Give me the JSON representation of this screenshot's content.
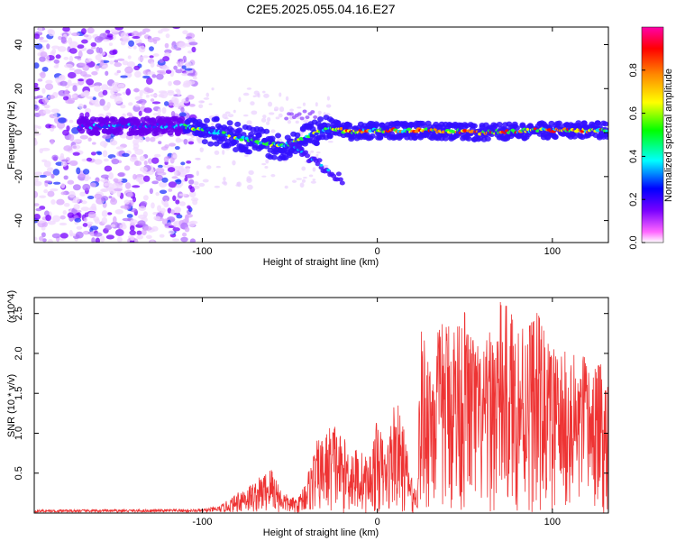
{
  "chart_data": [
    {
      "type": "heatmap",
      "title": "C2E5.2025.055.04.16.E27",
      "xlabel": "Height of straight line (km)",
      "ylabel": "Frequency (Hz)",
      "xlim": [
        -196,
        132
      ],
      "ylim": [
        -50,
        48
      ],
      "xticks": [
        "-100",
        "0",
        "100"
      ],
      "yticks": [
        "-40",
        "-20",
        "0",
        "20",
        "40"
      ],
      "grid": false,
      "colorbar": {
        "label": "Normalized spectral amplitude",
        "range": [
          0.0,
          1.0
        ],
        "ticks": [
          "0.0",
          "0.2",
          "0.4",
          "0.6",
          "0.8"
        ],
        "colormap": [
          "#ffffff",
          "#ff66ff",
          "#7700ff",
          "#0000ff",
          "#00ffff",
          "#00ff00",
          "#ffff00",
          "#ff8800",
          "#ff0000",
          "#ff00aa"
        ]
      },
      "ridge": {
        "description_points_x": [
          -170,
          -140,
          -110,
          -90,
          -70,
          -55,
          -45,
          -35,
          -25,
          -15,
          0,
          30,
          60,
          90,
          120,
          132
        ],
        "description_points_freq": [
          3,
          3,
          3,
          0,
          -4,
          -6,
          -4,
          0,
          2,
          0,
          1,
          1,
          0,
          1,
          1,
          1
        ]
      }
    },
    {
      "type": "line",
      "xlabel": "Height of straight line (km)",
      "ylabel": "SNR (10 * v/v)",
      "y_multiplier": "(x10^4)",
      "xlim": [
        -196,
        132
      ],
      "ylim": [
        0,
        2.7
      ],
      "xticks": [
        "-100",
        "0",
        "100"
      ],
      "yticks": [
        "0.5",
        "1.0",
        "1.5",
        "2.0",
        "2.5"
      ],
      "series_color": "#ee3333",
      "envelope": {
        "x": [
          -196,
          -100,
          -90,
          -80,
          -70,
          -60,
          -55,
          -50,
          -45,
          -40,
          -35,
          -30,
          -25,
          -20,
          -10,
          -5,
          0,
          5,
          10,
          15,
          20,
          22,
          25,
          30,
          40,
          50,
          60,
          70,
          80,
          90,
          100,
          110,
          120,
          132
        ],
        "max_y": [
          0.04,
          0.05,
          0.1,
          0.3,
          0.4,
          0.6,
          0.3,
          0.2,
          0.2,
          0.5,
          0.9,
          1.0,
          1.2,
          0.95,
          0.8,
          0.7,
          1.2,
          0.8,
          1.5,
          1.1,
          0.4,
          0.3,
          2.3,
          2.2,
          2.5,
          2.6,
          2.0,
          2.7,
          2.5,
          2.6,
          2.1,
          2.0,
          2.0,
          1.8
        ]
      }
    }
  ]
}
